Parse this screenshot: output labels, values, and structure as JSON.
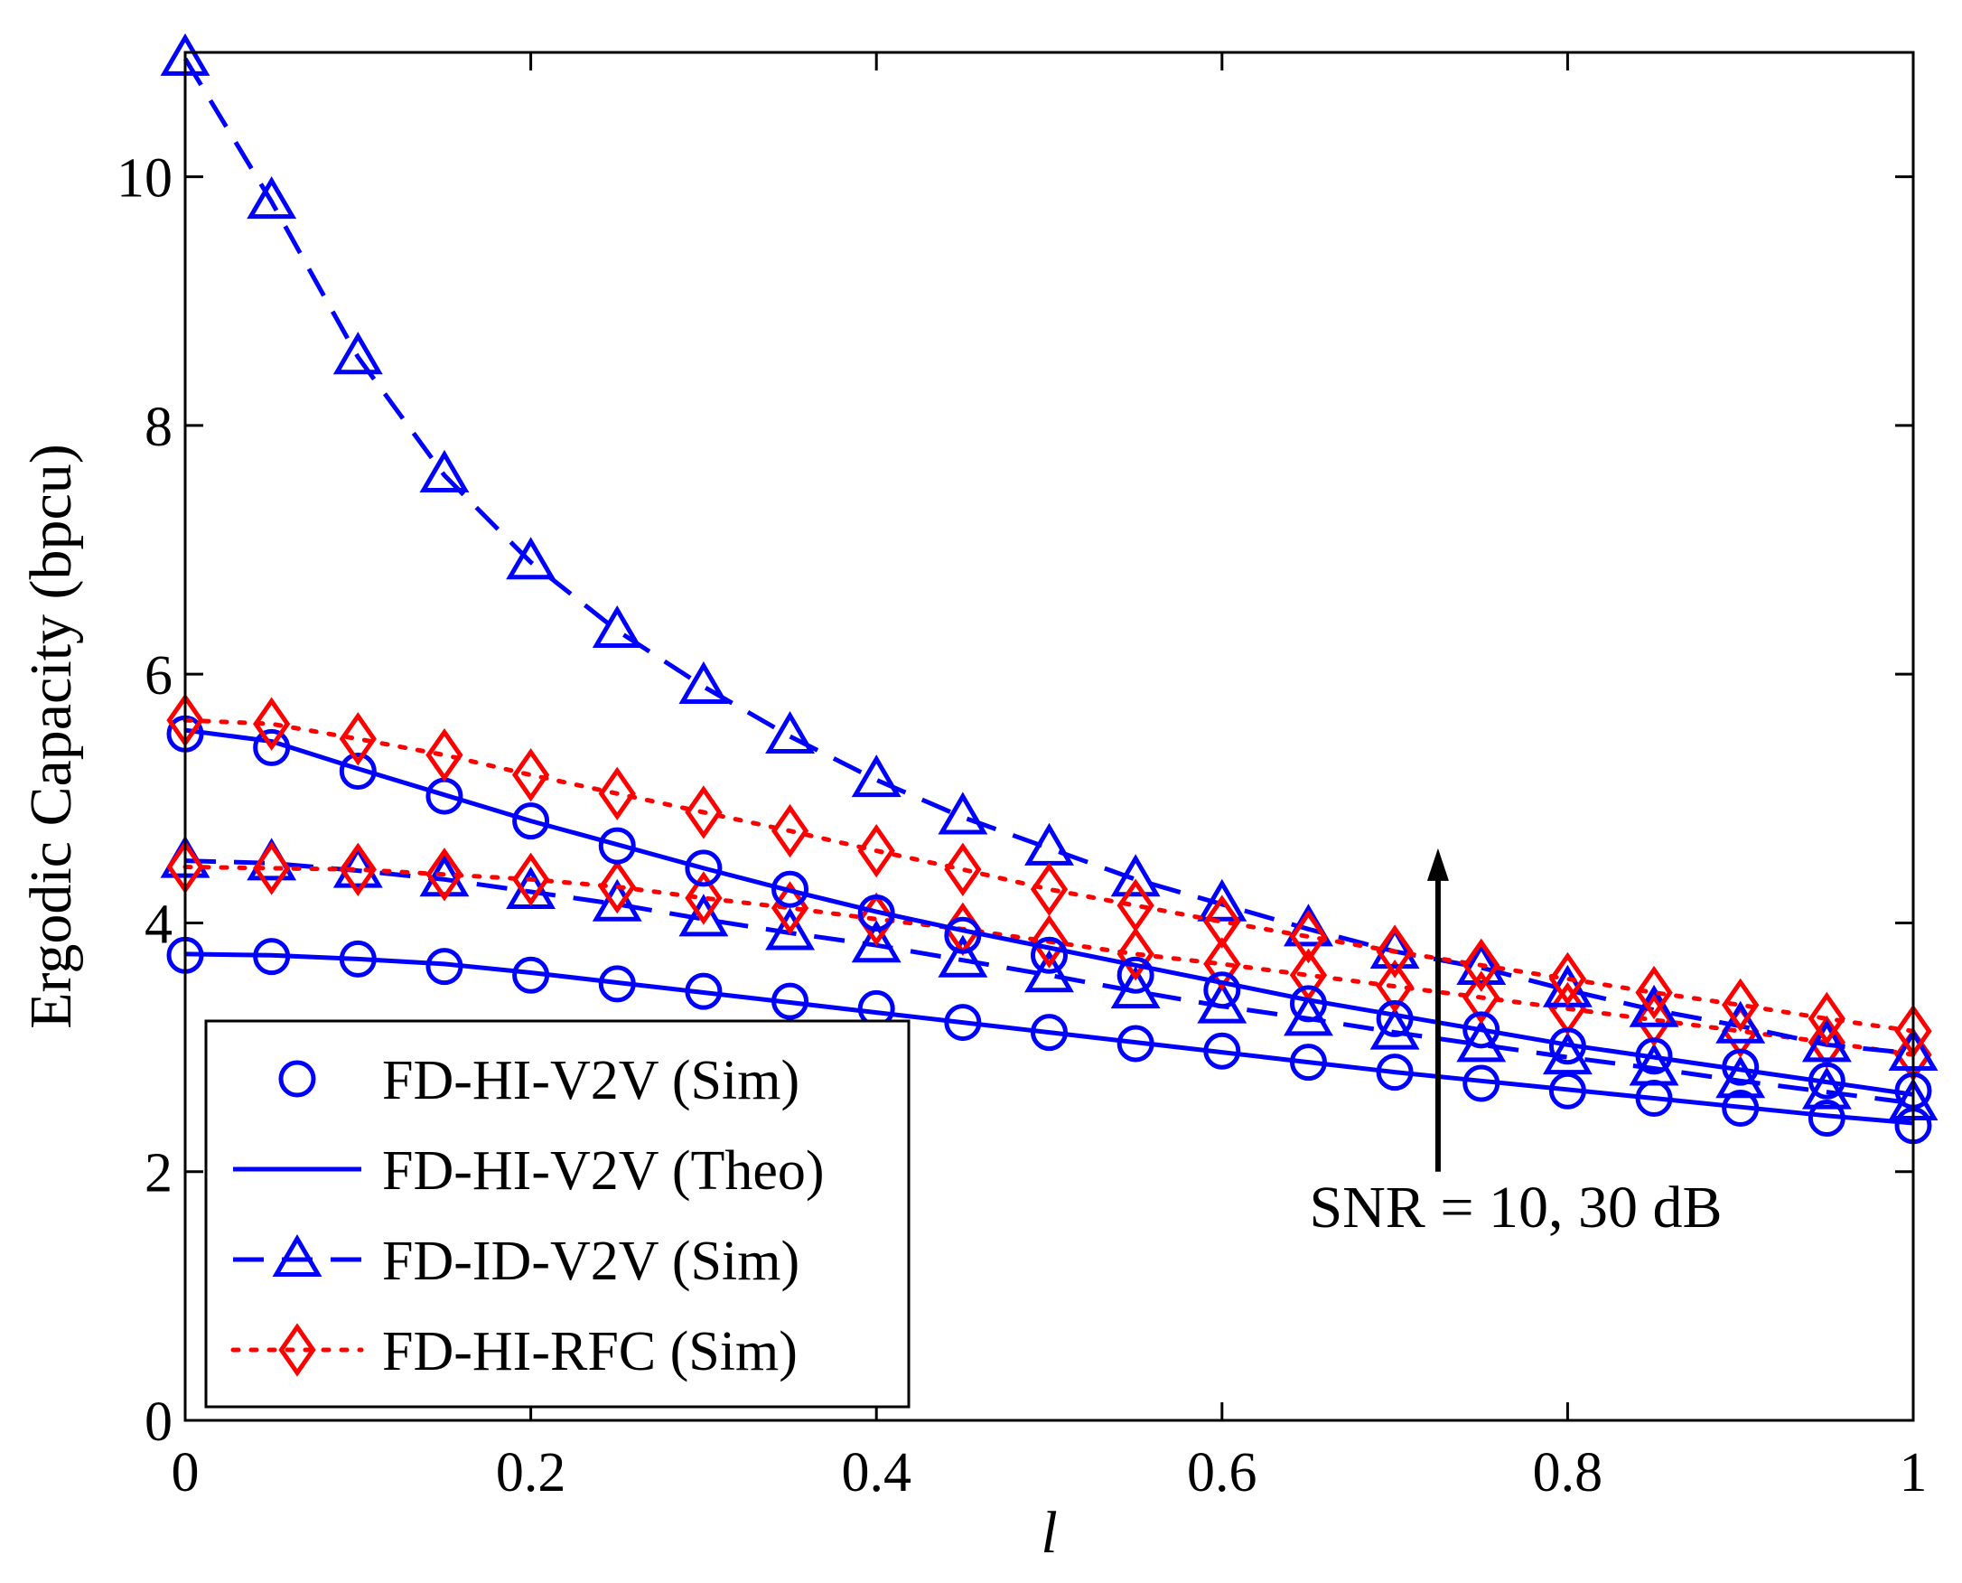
{
  "chart_data": {
    "type": "line",
    "title": "",
    "xlabel": "l",
    "ylabel": "Ergodic Capacity (bpcu)",
    "xlim": [
      0,
      1
    ],
    "ylim": [
      0,
      11
    ],
    "xticks": [
      0,
      0.2,
      0.4,
      0.6,
      0.8,
      1
    ],
    "xtick_labels": [
      "0",
      "0.2",
      "0.4",
      "0.6",
      "0.8",
      "1"
    ],
    "yticks": [
      0,
      2,
      4,
      6,
      8,
      10
    ],
    "ytick_labels": [
      "0",
      "2",
      "4",
      "6",
      "8",
      "10"
    ],
    "grid": false,
    "legend_position": "bottom-left",
    "x": [
      0,
      0.05,
      0.1,
      0.15,
      0.2,
      0.25,
      0.3,
      0.35,
      0.4,
      0.45,
      0.5,
      0.55,
      0.6,
      0.65,
      0.7,
      0.75,
      0.8,
      0.85,
      0.9,
      0.95,
      1
    ],
    "series": [
      {
        "name": "FD-HI-V2V (Theo)",
        "group": "SNR=10dB",
        "style": "solid",
        "marker": "none",
        "color": "#0000ff",
        "values": [
          3.75,
          3.74,
          3.71,
          3.67,
          3.6,
          3.52,
          3.44,
          3.36,
          3.28,
          3.2,
          3.12,
          3.04,
          2.96,
          2.88,
          2.8,
          2.73,
          2.66,
          2.59,
          2.52,
          2.45,
          2.39
        ]
      },
      {
        "name": "FD-HI-V2V (Sim)",
        "group": "SNR=10dB",
        "style": "none",
        "marker": "circle",
        "color": "#0000ff",
        "values": [
          3.74,
          3.73,
          3.71,
          3.65,
          3.58,
          3.51,
          3.45,
          3.37,
          3.31,
          3.2,
          3.12,
          3.03,
          2.97,
          2.88,
          2.8,
          2.71,
          2.65,
          2.59,
          2.51,
          2.43,
          2.37
        ]
      },
      {
        "name": "FD-ID-V2V (Sim)",
        "group": "SNR=10dB",
        "style": "dashed",
        "marker": "triangle",
        "color": "#0000ff",
        "values": [
          4.5,
          4.48,
          4.42,
          4.35,
          4.25,
          4.15,
          4.03,
          3.92,
          3.82,
          3.7,
          3.58,
          3.45,
          3.33,
          3.23,
          3.12,
          3.02,
          2.92,
          2.83,
          2.73,
          2.64,
          2.55
        ]
      },
      {
        "name": "FD-HI-RFC (Sim)",
        "group": "SNR=10dB",
        "style": "dotted",
        "marker": "diamond",
        "color": "#ff0000",
        "values": [
          4.45,
          4.44,
          4.43,
          4.39,
          4.35,
          4.29,
          4.2,
          4.12,
          4.03,
          3.95,
          3.85,
          3.75,
          3.67,
          3.58,
          3.49,
          3.4,
          3.31,
          3.22,
          3.13,
          3.04,
          2.94
        ]
      },
      {
        "name": "FD-HI-V2V (Theo)",
        "group": "SNR=30dB",
        "style": "solid",
        "marker": "none",
        "color": "#0000ff",
        "values": [
          5.55,
          5.46,
          5.24,
          5.03,
          4.82,
          4.63,
          4.44,
          4.26,
          4.09,
          3.94,
          3.8,
          3.66,
          3.52,
          3.38,
          3.26,
          3.14,
          3.02,
          2.92,
          2.82,
          2.72,
          2.62
        ]
      },
      {
        "name": "FD-HI-V2V (Sim)",
        "group": "SNR=30dB",
        "style": "none",
        "marker": "circle",
        "color": "#0000ff",
        "values": [
          5.52,
          5.41,
          5.22,
          5.02,
          4.82,
          4.62,
          4.44,
          4.27,
          4.08,
          3.9,
          3.74,
          3.58,
          3.46,
          3.35,
          3.23,
          3.14,
          3.01,
          2.93,
          2.84,
          2.73,
          2.65
        ]
      },
      {
        "name": "FD-ID-V2V (Sim)",
        "group": "SNR=30dB",
        "style": "dashed",
        "marker": "triangle",
        "color": "#0000ff",
        "values": [
          10.95,
          9.8,
          8.55,
          7.6,
          6.9,
          6.35,
          5.9,
          5.5,
          5.15,
          4.85,
          4.6,
          4.35,
          4.15,
          3.95,
          3.77,
          3.64,
          3.46,
          3.3,
          3.17,
          3.02,
          2.95
        ]
      },
      {
        "name": "FD-HI-RFC (Sim)",
        "group": "SNR=30dB",
        "style": "dotted",
        "marker": "diamond",
        "color": "#ff0000",
        "values": [
          5.63,
          5.6,
          5.48,
          5.35,
          5.19,
          5.04,
          4.89,
          4.74,
          4.58,
          4.43,
          4.27,
          4.14,
          4.01,
          3.89,
          3.77,
          3.66,
          3.55,
          3.44,
          3.34,
          3.23,
          3.13
        ]
      }
    ],
    "legend": [
      {
        "label": "FD-HI-V2V (Sim)",
        "style": "none",
        "marker": "circle",
        "color": "#0000ff"
      },
      {
        "label": "FD-HI-V2V (Theo)",
        "style": "solid",
        "marker": "none",
        "color": "#0000ff"
      },
      {
        "label": "FD-ID-V2V (Sim)",
        "style": "dashed",
        "marker": "triangle",
        "color": "#0000ff"
      },
      {
        "label": "FD-HI-RFC (Sim)",
        "style": "dotted",
        "marker": "diamond",
        "color": "#ff0000"
      }
    ],
    "annotation": {
      "text": "SNR = 10, 30 dB",
      "arrow_x": 0.725,
      "arrow_from_y": 2.0,
      "arrow_to_y": 4.6,
      "text_x": 0.77,
      "text_y": 1.7
    }
  }
}
